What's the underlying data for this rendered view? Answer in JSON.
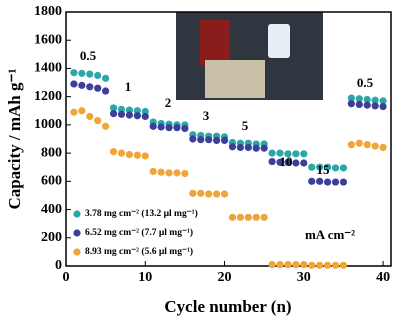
{
  "chart_data": {
    "type": "scatter",
    "xlabel": "Cycle number (n)",
    "ylabel": "Capacity / mAh g⁻¹",
    "x": [
      1,
      2,
      3,
      4,
      5,
      6,
      7,
      8,
      9,
      10,
      11,
      12,
      13,
      14,
      15,
      16,
      17,
      18,
      19,
      20,
      21,
      22,
      23,
      24,
      25,
      26,
      27,
      28,
      29,
      30,
      31,
      32,
      33,
      34,
      35,
      36,
      37,
      38,
      39,
      40
    ],
    "series": [
      {
        "name": "3.78 mg cm⁻² (13.2 µl mg⁻¹)",
        "color": "#2aa7a8",
        "values": [
          1370,
          1365,
          1360,
          1350,
          1330,
          1120,
          1110,
          1105,
          1100,
          1095,
          1020,
          1010,
          1005,
          1000,
          1000,
          930,
          925,
          920,
          920,
          915,
          875,
          870,
          870,
          865,
          865,
          800,
          800,
          795,
          795,
          795,
          700,
          700,
          700,
          695,
          695,
          1190,
          1185,
          1180,
          1175,
          1170
        ]
      },
      {
        "name": "6.52 mg cm⁻² (7.7 µl mg⁻¹)",
        "color": "#3b3f9a",
        "values": [
          1290,
          1280,
          1270,
          1260,
          1240,
          1080,
          1075,
          1070,
          1065,
          1060,
          990,
          985,
          980,
          980,
          975,
          900,
          895,
          895,
          890,
          890,
          845,
          840,
          840,
          835,
          835,
          740,
          735,
          735,
          730,
          730,
          600,
          600,
          595,
          595,
          595,
          1150,
          1145,
          1140,
          1135,
          1130
        ]
      },
      {
        "name": "8.93 mg cm⁻² (5.6 µl mg⁻¹)",
        "color": "#f0a43a",
        "values": [
          1090,
          1100,
          1060,
          1030,
          990,
          810,
          800,
          790,
          785,
          780,
          670,
          665,
          660,
          660,
          655,
          515,
          515,
          510,
          510,
          510,
          345,
          345,
          345,
          345,
          345,
          10,
          10,
          10,
          10,
          10,
          5,
          5,
          5,
          5,
          5,
          860,
          870,
          860,
          850,
          840
        ]
      }
    ],
    "annotations": [
      "0.5",
      "1",
      "2",
      "3",
      "5",
      "10",
      "15",
      "0.5",
      "mA cm⁻²"
    ],
    "xlim": [
      0,
      41
    ],
    "ylim": [
      0,
      1800
    ],
    "xticks": [
      0,
      10,
      20,
      30,
      40
    ],
    "yticks": [
      0,
      200,
      400,
      600,
      800,
      1000,
      1200,
      1400,
      1600,
      1800
    ],
    "legend": "lower left"
  }
}
